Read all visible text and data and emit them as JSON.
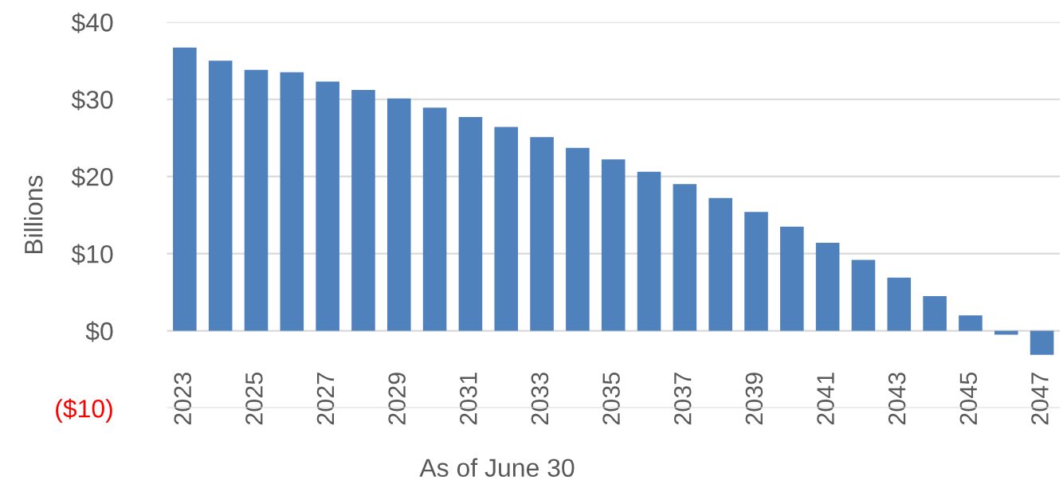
{
  "chart_data": {
    "type": "bar",
    "xlabel": "As of June 30",
    "ylabel": "Billions",
    "categories": [
      "2023",
      null,
      "2025",
      null,
      "2027",
      null,
      "2029",
      null,
      "2031",
      null,
      "2033",
      null,
      "2035",
      null,
      "2037",
      null,
      "2039",
      null,
      "2041",
      null,
      "2043",
      null,
      "2045",
      null,
      "2047"
    ],
    "values": [
      36.7,
      35.0,
      33.8,
      33.5,
      32.3,
      31.2,
      30.1,
      28.9,
      27.7,
      26.4,
      25.1,
      23.7,
      22.2,
      20.6,
      19.0,
      17.2,
      15.4,
      13.5,
      11.4,
      9.2,
      6.9,
      4.5,
      2.0,
      -0.5,
      -3.1
    ],
    "color": "#4f81bd",
    "ylim": [
      -10,
      40
    ],
    "yticks": [
      {
        "value": -10,
        "label": "($10)"
      },
      {
        "value": 0,
        "label": "$0"
      },
      {
        "value": 10,
        "label": "$10"
      },
      {
        "value": 20,
        "label": "$20"
      },
      {
        "value": 30,
        "label": "$30"
      },
      {
        "value": 40,
        "label": "$40"
      }
    ],
    "grid": "y",
    "legend": false
  }
}
